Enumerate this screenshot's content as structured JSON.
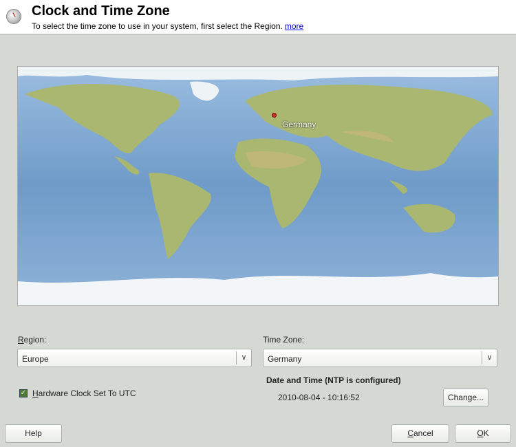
{
  "header": {
    "title": "Clock and Time Zone",
    "subtitle": "To select the time zone to use in your system, first select the Region.",
    "more_link": "more",
    "icon": "clock-icon"
  },
  "map": {
    "selected_label": "Germany",
    "marker_color": "#c0392b"
  },
  "region": {
    "label": "Region:",
    "value": "Europe"
  },
  "timezone": {
    "label": "Time Zone:",
    "value": "Germany"
  },
  "hardware_clock": {
    "label": "Hardware Clock Set To UTC",
    "checked": true
  },
  "datetime": {
    "heading": "Date and Time (NTP is configured)",
    "value": "2010-08-04 - 10:16:52",
    "change_label": "Change..."
  },
  "buttons": {
    "help": "Help",
    "cancel": "Cancel",
    "ok": "OK"
  }
}
